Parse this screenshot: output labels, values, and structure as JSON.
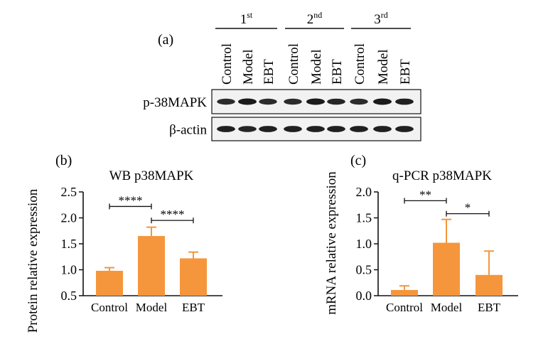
{
  "panel_a": {
    "label": "(a)",
    "groups": [
      {
        "num": "1",
        "sup": "st"
      },
      {
        "num": "2",
        "sup": "nd"
      },
      {
        "num": "3",
        "sup": "rd"
      }
    ],
    "lanes": [
      "Control",
      "Model",
      "EBT",
      "Control",
      "Model",
      "EBT",
      "Control",
      "Model",
      "EBT"
    ],
    "blots": [
      {
        "label": "p-38MAPK",
        "intensity": [
          0.85,
          1.0,
          0.85,
          0.85,
          1.0,
          0.9,
          0.85,
          1.0,
          0.95
        ]
      },
      {
        "label": "β-actin",
        "intensity": [
          0.95,
          0.9,
          0.95,
          0.95,
          0.95,
          0.95,
          0.95,
          0.95,
          0.95
        ]
      }
    ]
  },
  "chart_data": [
    {
      "panel_label": "(b)",
      "type": "bar",
      "title": "WB p38MAPK",
      "xlabel": "",
      "ylabel": "Protein relative expression",
      "categories": [
        "Control",
        "Model",
        "EBT"
      ],
      "values": [
        0.98,
        1.65,
        1.22
      ],
      "errors": [
        0.06,
        0.17,
        0.12
      ],
      "ylim": [
        0.5,
        2.5
      ],
      "yticks": [
        "0.5",
        "1.0",
        "1.5",
        "2.0",
        "2.5"
      ],
      "bar_color": "#f5963c",
      "significance": [
        {
          "from": 0,
          "to": 1,
          "label": "****",
          "y": 2.22
        },
        {
          "from": 1,
          "to": 2,
          "label": "****",
          "y": 1.95
        }
      ]
    },
    {
      "panel_label": "(c)",
      "type": "bar",
      "title": "q-PCR p38MAPK",
      "xlabel": "",
      "ylabel": "mRNA relative expression",
      "categories": [
        "Control",
        "Model",
        "EBT"
      ],
      "values": [
        0.11,
        1.02,
        0.4
      ],
      "errors": [
        0.08,
        0.45,
        0.46
      ],
      "ylim": [
        0.0,
        2.0
      ],
      "yticks": [
        "0.0",
        "0.5",
        "1.0",
        "1.5",
        "2.0"
      ],
      "bar_color": "#f5963c",
      "significance": [
        {
          "from": 0,
          "to": 1,
          "label": "**",
          "y": 1.83
        },
        {
          "from": 1,
          "to": 2,
          "label": "*",
          "y": 1.58
        }
      ]
    }
  ]
}
